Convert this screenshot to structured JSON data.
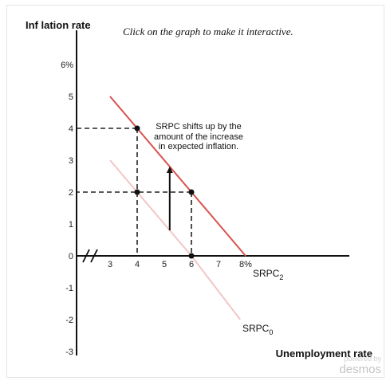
{
  "header": {
    "y_axis_label": "Inf lation rate",
    "hint": "Click on the graph to make it interactive."
  },
  "chart_data": {
    "type": "line",
    "xlabel": "Unemployment rate",
    "ylabel": "Inf lation rate",
    "xlim": [
      2,
      10
    ],
    "ylim": [
      -3,
      6.3
    ],
    "x_ticks": [
      "3",
      "4",
      "5",
      "6",
      "7",
      "8%"
    ],
    "y_ticks": [
      "6%",
      "5",
      "4",
      "3",
      "2",
      "1",
      "0",
      "-1",
      "-2",
      "-3"
    ],
    "series": [
      {
        "name": "SRPC",
        "sub": "2",
        "color": "#d9534f",
        "points": [
          [
            3,
            5
          ],
          [
            8,
            0
          ]
        ]
      },
      {
        "name": "SRPC",
        "sub": "0",
        "color": "#f3c6c6",
        "points": [
          [
            3,
            3
          ],
          [
            6,
            0
          ],
          [
            7.8,
            -2
          ]
        ]
      }
    ],
    "points": [
      [
        4,
        4
      ],
      [
        4,
        2
      ],
      [
        6,
        2
      ],
      [
        6,
        0
      ]
    ],
    "guides": [
      [
        [
          4,
          4
        ],
        [
          2,
          4
        ]
      ],
      [
        [
          4,
          4
        ],
        [
          4,
          0
        ]
      ],
      [
        [
          6,
          2
        ],
        [
          2,
          2
        ]
      ],
      [
        [
          6,
          2
        ],
        [
          6,
          0
        ]
      ]
    ],
    "arrow": {
      "from": [
        5.2,
        0.8
      ],
      "to": [
        5.2,
        2.8
      ]
    },
    "annotation": [
      "SRPC shifts up by the",
      "amount of the increase",
      "in expected inflation."
    ],
    "axis_break": true
  },
  "branding": {
    "powered_by": "powered by",
    "name": "desmos"
  }
}
